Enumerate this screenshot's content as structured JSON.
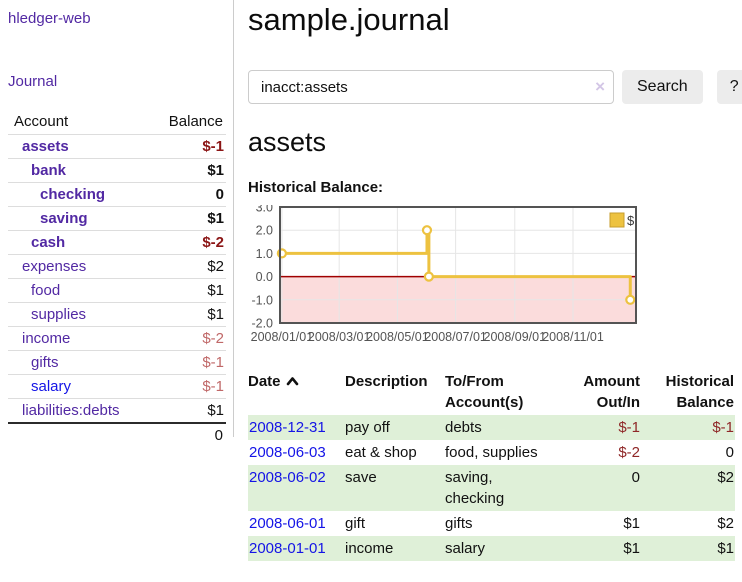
{
  "app": {
    "title": "hledger-web"
  },
  "nav": {
    "journal_label": "Journal"
  },
  "sidebar": {
    "account_header": "Account",
    "balance_header": "Balance",
    "accounts": [
      {
        "name": "assets",
        "level": 1,
        "balance": "$-1",
        "inpath": true
      },
      {
        "name": "bank",
        "level": 2,
        "balance": "$1",
        "inpath": true
      },
      {
        "name": "checking",
        "level": 3,
        "balance": "0",
        "inpath": true
      },
      {
        "name": "saving",
        "level": 3,
        "balance": "$1",
        "inpath": true
      },
      {
        "name": "cash",
        "level": 2,
        "balance": "$-2",
        "inpath": true
      },
      {
        "name": "expenses",
        "level": 1,
        "balance": "$2"
      },
      {
        "name": "food",
        "level": 2,
        "balance": "$1"
      },
      {
        "name": "supplies",
        "level": 2,
        "balance": "$1"
      },
      {
        "name": "income",
        "level": 1,
        "balance": "$-2"
      },
      {
        "name": "gifts",
        "level": 2,
        "balance": "$-1"
      },
      {
        "name": "salary",
        "level": 2,
        "balance": "$-1",
        "unvisited": true
      },
      {
        "name": "liabilities:debts",
        "level": 1,
        "balance": "$1"
      }
    ],
    "total": "0"
  },
  "main": {
    "title": "sample.journal",
    "search": {
      "value": "inacct:assets",
      "clear_icon": "×",
      "search_button": "Search",
      "help_button": "?"
    },
    "account_heading": "assets",
    "chart_label": "Historical Balance:"
  },
  "chart_data": {
    "type": "line",
    "step": true,
    "title": "Historical Balance",
    "series": [
      {
        "name": "$",
        "color": "#edc240",
        "points": [
          [
            "2008-01-01",
            1
          ],
          [
            "2008-06-01",
            2
          ],
          [
            "2008-06-03",
            0
          ],
          [
            "2008-12-31",
            -1
          ]
        ]
      }
    ],
    "x_ticks": [
      "2008/01/01",
      "2008/03/01",
      "2008/05/01",
      "2008/07/01",
      "2008/09/01",
      "2008/11/01"
    ],
    "y_ticks": [
      3.0,
      2.0,
      1.0,
      0.0,
      -1.0,
      -2.0
    ],
    "ylim": [
      -2,
      3
    ],
    "legend": "$",
    "legend_position": "top-right",
    "grid": true,
    "colors": {
      "negative_region": "#fbdcdc",
      "zero_line": "#a00000",
      "grid_line": "#e6e6e6",
      "border": "#545454",
      "tick_text": "#545454",
      "point_fill": "#ffffff"
    }
  },
  "register": {
    "headers": {
      "date": "Date",
      "description": "Description",
      "accounts": "To/From Account(s)",
      "amount": "Amount Out/In",
      "balance": "Historical Balance"
    },
    "rows": [
      {
        "date": "2008-12-31",
        "description": "pay off",
        "accounts": "debts",
        "amount": "$-1",
        "balance": "$-1"
      },
      {
        "date": "2008-06-03",
        "description": "eat & shop",
        "accounts": "food, supplies",
        "amount": "$-2",
        "balance": "0"
      },
      {
        "date": "2008-06-02",
        "description": "save",
        "accounts": "saving, checking",
        "amount": "0",
        "balance": "$2"
      },
      {
        "date": "2008-06-01",
        "description": "gift",
        "accounts": "gifts",
        "amount": "$1",
        "balance": "$2"
      },
      {
        "date": "2008-01-01",
        "description": "income",
        "accounts": "salary",
        "amount": "$1",
        "balance": "$1"
      }
    ]
  }
}
